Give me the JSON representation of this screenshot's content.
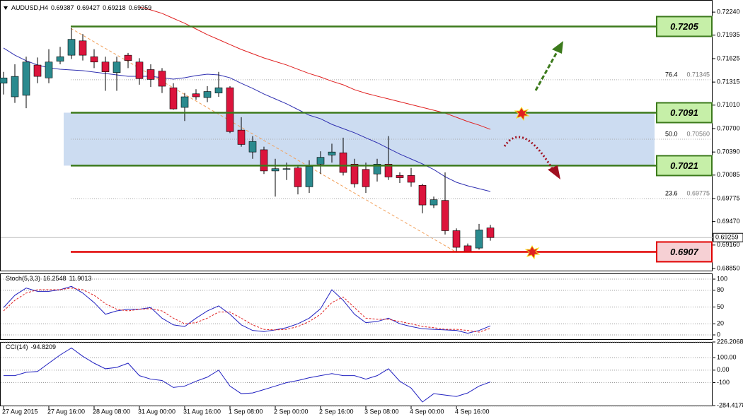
{
  "chart_data": [
    {
      "type": "candlestick",
      "title": "AUDUSD,H4",
      "categories": [
        "27 Aug 2015",
        null,
        null,
        null,
        "27 Aug 16:00",
        null,
        null,
        null,
        "28 Aug 08:00",
        null,
        null,
        null,
        "31 Aug 00:00",
        null,
        null,
        null,
        "31 Aug 16:00",
        null,
        null,
        null,
        "1 Sep 08:00",
        null,
        null,
        null,
        "2 Sep 00:00",
        null,
        null,
        null,
        "2 Sep 16:00",
        null,
        null,
        null,
        "3 Sep 08:00",
        null,
        null,
        null,
        "4 Sep 00:00",
        null,
        null,
        null,
        "4 Sep 16:00",
        null,
        null,
        null
      ],
      "open": [
        0.713,
        0.7112,
        0.7114,
        0.7154,
        0.7137,
        0.7159,
        0.7167,
        0.7186,
        0.7165,
        0.7158,
        0.7144,
        0.7167,
        0.7158,
        0.7148,
        0.7146,
        0.7124,
        0.7098,
        0.7116,
        0.7111,
        0.7117,
        0.7124,
        0.7068,
        0.7039,
        0.7042,
        0.7014,
        0.7016,
        0.7018,
        0.6993,
        0.7023,
        0.7035,
        0.7038,
        0.7023,
        0.7016,
        0.701,
        0.7023,
        0.7008,
        0.7008,
        0.6995,
        0.6969,
        0.6975,
        0.6935,
        0.6915,
        0.6912,
        0.69387
      ],
      "high": [
        0.7145,
        0.7155,
        0.7165,
        0.7164,
        0.7175,
        0.7178,
        0.7203,
        0.7195,
        0.7175,
        0.7165,
        0.7165,
        0.717,
        0.7163,
        0.7155,
        0.715,
        0.713,
        0.7117,
        0.7122,
        0.7126,
        0.7145,
        0.7126,
        0.7085,
        0.706,
        0.7046,
        0.703,
        0.7025,
        0.7022,
        0.7028,
        0.704,
        0.705,
        0.7058,
        0.703,
        0.7025,
        0.703,
        0.706,
        0.7012,
        0.7018,
        0.6997,
        0.698,
        0.7012,
        0.6938,
        0.6918,
        0.6944,
        0.69427
      ],
      "low": [
        0.7115,
        0.7104,
        0.7097,
        0.713,
        0.713,
        0.7155,
        0.7162,
        0.716,
        0.715,
        0.712,
        0.712,
        0.715,
        0.7128,
        0.7125,
        0.7117,
        0.7095,
        0.708,
        0.7108,
        0.7105,
        0.7112,
        0.7064,
        0.7046,
        0.703,
        0.701,
        0.698,
        0.7002,
        0.6983,
        0.6985,
        0.701,
        0.7025,
        0.7008,
        0.6992,
        0.6985,
        0.7,
        0.7002,
        0.6998,
        0.6993,
        0.6958,
        0.6965,
        0.693,
        0.6907,
        0.6906,
        0.691,
        0.69218
      ],
      "close": [
        0.7137,
        0.7139,
        0.7158,
        0.7139,
        0.7158,
        0.7165,
        0.7188,
        0.7167,
        0.7158,
        0.7145,
        0.7158,
        0.716,
        0.7136,
        0.7135,
        0.7126,
        0.7096,
        0.7112,
        0.7112,
        0.7119,
        0.7124,
        0.7066,
        0.7049,
        0.7053,
        0.7014,
        0.7017,
        0.7017,
        0.6993,
        0.702,
        0.7032,
        0.7039,
        0.7012,
        0.6997,
        0.6993,
        0.7023,
        0.7006,
        0.7005,
        0.6999,
        0.6969,
        0.6976,
        0.6935,
        0.6913,
        0.6907,
        0.6936,
        0.69259
      ],
      "up_color": "#2a8a8e",
      "down_color": "#dc143c",
      "overlays": [
        {
          "color": "#2f2fb0",
          "values": [
            0.71765,
            0.71671,
            0.71597,
            0.71541,
            0.71503,
            0.71484,
            0.71475,
            0.71466,
            0.71447,
            0.71428,
            0.7141,
            0.71391,
            0.71391,
            0.71391,
            0.71372,
            0.71354,
            0.71372,
            0.714,
            0.71419,
            0.7141,
            0.71372,
            0.71298,
            0.71232,
            0.71157,
            0.71092,
            0.71027,
            0.70952,
            0.70877,
            0.7083,
            0.70756,
            0.707,
            0.70644,
            0.70578,
            0.70513,
            0.70438,
            0.70363,
            0.70298,
            0.70233,
            0.70158,
            0.70064,
            0.6999,
            0.69943,
            0.69906,
            0.69868
          ]
        },
        {
          "color": "#e02020",
          "values": [
            null,
            null,
            null,
            null,
            null,
            null,
            null,
            null,
            null,
            null,
            null,
            null,
            0.72307,
            0.72269,
            0.72223,
            0.72157,
            0.72092,
            0.72017,
            0.71942,
            0.71877,
            0.71811,
            0.71746,
            0.7169,
            0.71634,
            0.71587,
            0.71541,
            0.71484,
            0.71428,
            0.71382,
            0.71326,
            0.71279,
            0.71214,
            0.71167,
            0.71129,
            0.71092,
            0.71055,
            0.71017,
            0.7098,
            0.70943,
            0.70905,
            0.70849,
            0.70793,
            0.70746,
            0.7069
          ]
        }
      ],
      "ylim": [
        0.68822,
        0.724
      ],
      "yticks": [
        {
          "value": 0.7224,
          "label": "0.72240"
        },
        0.71935,
        0.71625,
        0.71315,
        {
          "value": 0.7101,
          "label": "0.71010"
        },
        {
          "value": 0.707,
          "label": "0.70700"
        },
        {
          "value": 0.7039,
          "label": "0.70390"
        },
        0.70085,
        0.69775,
        {
          "value": 0.6947,
          "label": "0.69470"
        },
        {
          "value": 0.6916,
          "label": "0.69160"
        },
        {
          "value": 0.6885,
          "label": "0.68850"
        }
      ],
      "levels": {
        "values": [
          0.7205,
          0.7091,
          0.7021,
          0.6907
        ],
        "colors": [
          "#3c7a1c",
          "#3c7a1c",
          "#3c7a1c",
          "#e00000"
        ],
        "label_fills": [
          "#c6efa8",
          "#c6efa8",
          "#c6efa8",
          "#f6d0d4"
        ]
      },
      "zone_color": "#c3d6ee",
      "fib": {
        "levels": [
          "76.4",
          "50.0",
          "23.6"
        ],
        "values": [
          0.71345,
          0.7056,
          0.69775
        ],
        "value_labels": [
          "0.71345",
          "0.70560",
          "0.69775"
        ]
      }
    },
    {
      "type": "line",
      "title": "Stoch(5,3,3)",
      "ylim": [
        -7.6,
        108.9
      ],
      "yticks": [
        100,
        80,
        50,
        20,
        0
      ],
      "series": [
        {
          "color": "#2020c0",
          "values": [
            49,
            71,
            84,
            78,
            78,
            81,
            87,
            75,
            58,
            37,
            43,
            46,
            46,
            49,
            30,
            18,
            15,
            30,
            43,
            52,
            37,
            18,
            8,
            6,
            9,
            13,
            20,
            30,
            47,
            81,
            62,
            37,
            22,
            24,
            30,
            20,
            15,
            11,
            10,
            9,
            8,
            3,
            8,
            16.2548
          ]
        },
        {
          "color": "#e02020",
          "dash": true,
          "values": [
            43,
            62,
            75,
            81,
            81,
            81,
            84,
            81,
            71,
            56,
            46,
            43,
            46,
            47,
            43,
            30,
            20,
            22,
            30,
            41,
            41,
            30,
            18,
            10,
            9,
            10,
            15,
            24,
            37,
            58,
            68,
            49,
            30,
            28,
            28,
            24,
            20,
            15,
            13,
            10,
            10,
            8,
            5,
            11.9013
          ]
        }
      ]
    },
    {
      "type": "line",
      "title": "CCI(14)",
      "ylim": [
        -284.4178,
        226.2068
      ],
      "yticks": [
        226.2068,
        {
          "value": 100,
          "label": "100.00"
        },
        {
          "value": 0,
          "label": "0.00"
        },
        -100,
        -284.4178
      ],
      "series": [
        {
          "color": "#2020c0",
          "values": [
            -44,
            -44,
            -17,
            -11,
            56,
            122,
            178,
            111,
            56,
            11,
            22,
            56,
            -44,
            -72,
            -83,
            -139,
            -128,
            -89,
            -56,
            0,
            -128,
            -189,
            -183,
            -156,
            -128,
            -100,
            -83,
            -61,
            -44,
            -28,
            -44,
            -44,
            -72,
            -44,
            11,
            -89,
            -144,
            -256,
            -189,
            -200,
            -211,
            -183,
            -128,
            -94.8209
          ]
        }
      ]
    }
  ]
}
